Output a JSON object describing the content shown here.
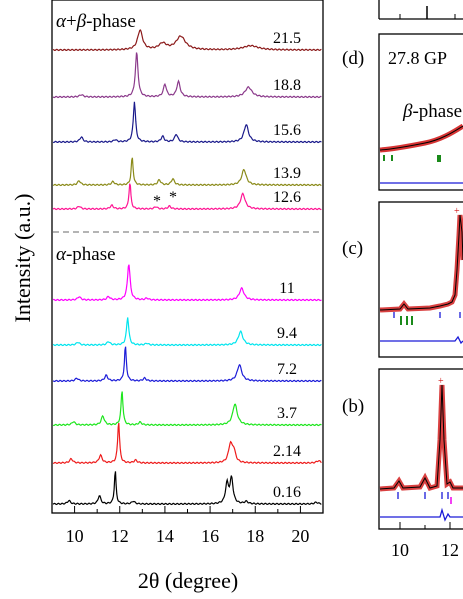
{
  "chart_data": [
    {
      "type": "line",
      "xlabel": "2θ (degree)",
      "ylabel": "Intensity (a.u.)",
      "xlim": [
        9,
        21
      ],
      "x_ticks": [
        10,
        12,
        14,
        16,
        18,
        20
      ],
      "phase_labels": [
        {
          "italic": "α",
          "plain": "+",
          "italic2": "β",
          "tail": "-phase"
        },
        {
          "italic": "α",
          "plain": "",
          "italic2": "",
          "tail": "-phase"
        }
      ],
      "annotations": [
        "*",
        "*"
      ],
      "series": [
        {
          "name": "21.5",
          "color": "#8b1a1a",
          "peaks": [
            [
              12.9,
              0.7,
              0.13
            ],
            [
              13.9,
              0.22,
              0.2
            ],
            [
              14.7,
              0.48,
              0.25
            ],
            [
              17.8,
              0.15,
              0.4
            ]
          ]
        },
        {
          "name": "18.8",
          "color": "#8b3a8b",
          "peaks": [
            [
              12.75,
              1.6,
              0.07
            ],
            [
              14.0,
              0.45,
              0.08
            ],
            [
              14.6,
              0.55,
              0.09
            ],
            [
              17.7,
              0.35,
              0.18
            ],
            [
              10.3,
              0.08,
              0.1
            ]
          ]
        },
        {
          "name": "15.6",
          "color": "#1a1a8b",
          "peaks": [
            [
              12.65,
              1.45,
              0.06
            ],
            [
              10.3,
              0.18,
              0.08
            ],
            [
              13.9,
              0.2,
              0.08
            ],
            [
              14.5,
              0.28,
              0.08
            ],
            [
              17.6,
              0.62,
              0.12
            ],
            [
              11.8,
              0.08,
              0.08
            ]
          ]
        },
        {
          "name": "13.9",
          "color": "#8b8b1a",
          "peaks": [
            [
              12.55,
              1.0,
              0.05
            ],
            [
              10.2,
              0.15,
              0.08
            ],
            [
              11.7,
              0.12,
              0.08
            ],
            [
              13.75,
              0.18,
              0.08
            ],
            [
              14.35,
              0.22,
              0.08
            ],
            [
              17.5,
              0.55,
              0.12
            ]
          ]
        },
        {
          "name": "12.6",
          "color": "#ff1493",
          "peaks": [
            [
              12.45,
              0.95,
              0.05
            ],
            [
              10.2,
              0.1,
              0.08
            ],
            [
              11.65,
              0.13,
              0.08
            ],
            [
              13.6,
              0.08,
              0.08
            ],
            [
              14.2,
              0.1,
              0.08
            ],
            [
              17.45,
              0.55,
              0.12
            ]
          ]
        },
        {
          "name": "11",
          "color": "#ff00ff",
          "peaks": [
            [
              12.4,
              1.3,
              0.07
            ],
            [
              10.2,
              0.12,
              0.08
            ],
            [
              11.5,
              0.12,
              0.08
            ],
            [
              13.2,
              0.06,
              0.08
            ],
            [
              17.4,
              0.42,
              0.12
            ]
          ]
        },
        {
          "name": "9.4",
          "color": "#00e5ee",
          "peaks": [
            [
              12.35,
              1.0,
              0.06
            ],
            [
              10.15,
              0.1,
              0.08
            ],
            [
              11.5,
              0.12,
              0.08
            ],
            [
              13.2,
              0.06,
              0.08
            ],
            [
              17.35,
              0.48,
              0.12
            ]
          ]
        },
        {
          "name": "7.2",
          "color": "#1c1cd8",
          "peaks": [
            [
              12.25,
              1.25,
              0.05
            ],
            [
              10.1,
              0.1,
              0.08
            ],
            [
              11.4,
              0.2,
              0.08
            ],
            [
              13.1,
              0.1,
              0.08
            ],
            [
              17.3,
              0.58,
              0.12
            ]
          ]
        },
        {
          "name": "3.7",
          "color": "#1ee61e",
          "peaks": [
            [
              12.1,
              1.25,
              0.05
            ],
            [
              9.95,
              0.12,
              0.08
            ],
            [
              11.25,
              0.32,
              0.08
            ],
            [
              12.9,
              0.1,
              0.08
            ],
            [
              17.1,
              0.75,
              0.12
            ]
          ]
        },
        {
          "name": "2.14",
          "color": "#ee1c1c",
          "peaks": [
            [
              11.95,
              1.5,
              0.05
            ],
            [
              9.85,
              0.15,
              0.08
            ],
            [
              11.15,
              0.28,
              0.08
            ],
            [
              12.7,
              0.1,
              0.08
            ],
            [
              16.9,
              0.65,
              0.1
            ],
            [
              17.05,
              0.4,
              0.09
            ],
            [
              20.8,
              0.08,
              0.1
            ]
          ]
        },
        {
          "name": "0.16",
          "color": "#000000",
          "peaks": [
            [
              11.8,
              1.2,
              0.045
            ],
            [
              9.75,
              0.12,
              0.08
            ],
            [
              11.1,
              0.3,
              0.07
            ],
            [
              12.6,
              0.1,
              0.08
            ],
            [
              16.75,
              0.72,
              0.08
            ],
            [
              16.95,
              0.9,
              0.08
            ],
            [
              17.6,
              0.08,
              0.1
            ],
            [
              20.7,
              0.06,
              0.1
            ]
          ]
        }
      ]
    },
    {
      "type": "scatter",
      "x_ticks": [
        10,
        12
      ],
      "panels": [
        {
          "letter": "(d)",
          "pressure": "27.8 GP",
          "phase_italic": "β",
          "phase_tail": "-phase"
        },
        {
          "letter": "(c)",
          "pressure": "",
          "phase_italic": "",
          "phase_tail": ""
        },
        {
          "letter": "(b)",
          "pressure": "",
          "phase_italic": "",
          "phase_tail": ""
        }
      ]
    }
  ]
}
